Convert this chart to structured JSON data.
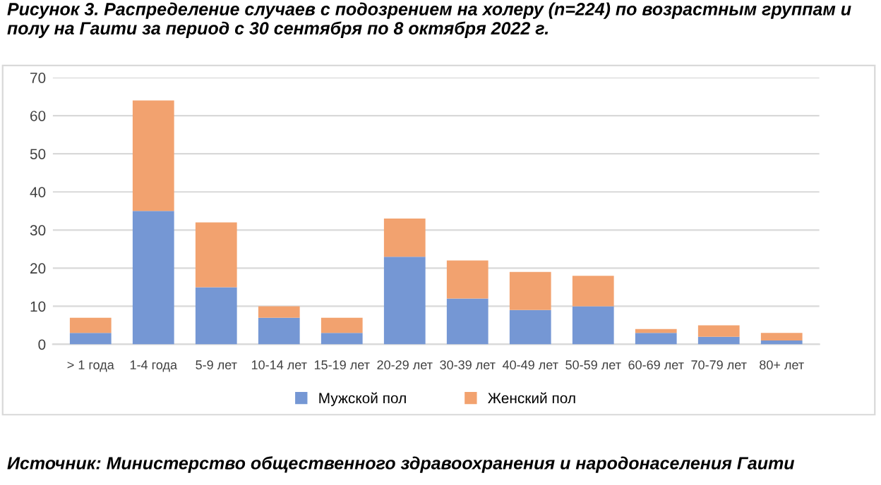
{
  "chart_data": {
    "type": "bar",
    "stacked": true,
    "title": "Рисунок 3. Распределение случаев с подозрением на холеру (n=224) по возрастным группам и полу на Гаити за период с 30 сентября по 8 октября 2022 г.",
    "categories": [
      "> 1 года",
      "1-4 года",
      "5-9 лет",
      "10-14 лет",
      "15-19 лет",
      "20-29 лет",
      "30-39 лет",
      "40-49 лет",
      "50-59 лет",
      "60-69 лет",
      "70-79 лет",
      "80+ лет"
    ],
    "series": [
      {
        "name": "Мужской пол",
        "color": "#7597d4",
        "values": [
          3,
          35,
          15,
          7,
          3,
          23,
          12,
          9,
          10,
          3,
          2,
          1
        ]
      },
      {
        "name": "Женский пол",
        "color": "#f2a26f",
        "values": [
          4,
          29,
          17,
          3,
          4,
          10,
          10,
          10,
          8,
          1,
          3,
          2
        ]
      }
    ],
    "ylim": [
      0,
      70
    ],
    "yticks": [
      0,
      10,
      20,
      30,
      40,
      50,
      60,
      70
    ],
    "grid": "y",
    "legend": "bottom",
    "annotations": [
      "Источник: Министерство общественного здравоохранения и народонаселения Гаити"
    ]
  }
}
